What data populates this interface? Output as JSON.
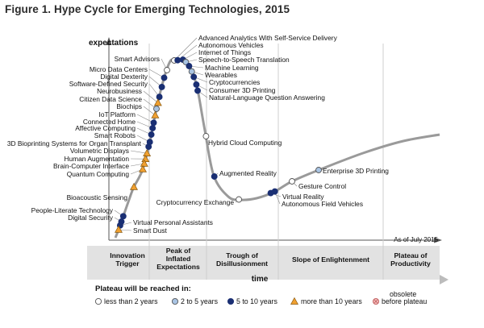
{
  "figure_title": "Figure 1. Hype Cycle for Emerging Technologies, 2015",
  "colors": {
    "less_than_2": "#ffffff",
    "two_to_5": "#a9c4e3",
    "five_to_10": "#1a2f73",
    "more_than_10": "#f0a030",
    "obsolete": "#f2b6b6",
    "curve": "#9a9a9a"
  },
  "chart_data": {
    "type": "scatter",
    "title": "Hype Cycle for Emerging Technologies, 2015",
    "ylabel": "expectations",
    "xlabel": "time",
    "as_of": "As of July 2015",
    "phases": [
      {
        "line1": "Innovation",
        "line2": "Trigger",
        "line3": ""
      },
      {
        "line1": "Peak of",
        "line2": "Inflated",
        "line3": "Expectations"
      },
      {
        "line1": "Trough of",
        "line2": "Disillusionment",
        "line3": ""
      },
      {
        "line1": "Slope of Enlightenment",
        "line2": "",
        "line3": ""
      },
      {
        "line1": "Plateau of",
        "line2": "Productivity",
        "line3": ""
      }
    ],
    "legend": {
      "title": "Plateau will be reached in:",
      "items": [
        {
          "key": "lt2",
          "label": "less than 2 years",
          "shape": "circle",
          "color": "#ffffff"
        },
        {
          "key": "2to5",
          "label": "2 to 5 years",
          "shape": "circle",
          "color": "#a9c4e3"
        },
        {
          "key": "5to10",
          "label": "5 to 10 years",
          "shape": "circle",
          "color": "#1a2f73"
        },
        {
          "key": "gt10",
          "label": "more than 10 years",
          "shape": "triangle",
          "color": "#f0a030"
        },
        {
          "key": "obs",
          "label": "obsolete",
          "label2": "before plateau",
          "shape": "circle-x",
          "color": "#f2b6b6"
        }
      ]
    },
    "points": [
      {
        "name": "Advanced Analytics With Self-Service Delivery",
        "t": 0.3,
        "cat": "lt2",
        "side": "right"
      },
      {
        "name": "Autonomous Vehicles",
        "t": 0.307,
        "cat": "5to10",
        "side": "right"
      },
      {
        "name": "Internet of Things",
        "t": 0.318,
        "cat": "5to10",
        "side": "right"
      },
      {
        "name": "Speech-to-Speech Translation",
        "t": 0.326,
        "cat": "2to5",
        "side": "right"
      },
      {
        "name": "Machine Learning",
        "t": 0.336,
        "cat": "5to10",
        "side": "right"
      },
      {
        "name": "Wearables",
        "t": 0.345,
        "cat": "2to5",
        "side": "right"
      },
      {
        "name": "Cryptocurrencies",
        "t": 0.352,
        "cat": "5to10",
        "side": "right"
      },
      {
        "name": "Consumer 3D Printing",
        "t": 0.362,
        "cat": "5to10",
        "side": "right"
      },
      {
        "name": "Natural-Language Question Answering",
        "t": 0.37,
        "cat": "5to10",
        "side": "right"
      },
      {
        "name": "Smart Advisors",
        "t": 0.275,
        "cat": "lt2",
        "side": "left"
      },
      {
        "name": "Micro Data Centers",
        "t": 0.262,
        "cat": "5to10",
        "side": "left"
      },
      {
        "name": "Digital Dexterity",
        "t": 0.252,
        "cat": "5to10",
        "side": "left"
      },
      {
        "name": "Software-Defined Security",
        "t": 0.242,
        "cat": "5to10",
        "side": "left"
      },
      {
        "name": "Neurobusiness",
        "t": 0.236,
        "cat": "gt10",
        "side": "left"
      },
      {
        "name": "Citizen Data Science",
        "t": 0.23,
        "cat": "2to5",
        "side": "left"
      },
      {
        "name": "Biochips",
        "t": 0.224,
        "cat": "gt10",
        "side": "left"
      },
      {
        "name": "IoT Platform",
        "t": 0.217,
        "cat": "5to10",
        "side": "left"
      },
      {
        "name": "Connected Home",
        "t": 0.212,
        "cat": "5to10",
        "side": "left"
      },
      {
        "name": "Affective Computing",
        "t": 0.206,
        "cat": "5to10",
        "side": "left"
      },
      {
        "name": "Smart Robots",
        "t": 0.199,
        "cat": "5to10",
        "side": "left"
      },
      {
        "name": "3D Bioprinting Systems for Organ Transplant",
        "t": 0.194,
        "cat": "5to10",
        "side": "left"
      },
      {
        "name": "Volumetric Displays",
        "t": 0.187,
        "cat": "gt10",
        "side": "left"
      },
      {
        "name": "Human Augmentation",
        "t": 0.181,
        "cat": "gt10",
        "side": "left"
      },
      {
        "name": "Brain-Computer Interface",
        "t": 0.176,
        "cat": "gt10",
        "side": "left"
      },
      {
        "name": "Quantum Computing",
        "t": 0.17,
        "cat": "gt10",
        "side": "left"
      },
      {
        "name": "Bioacoustic Sensing",
        "t": 0.13,
        "cat": "gt10",
        "side": "left"
      },
      {
        "name": "People-Literate Technology",
        "t": 0.045,
        "cat": "5to10",
        "side": "left"
      },
      {
        "name": "Digital Security",
        "t": 0.035,
        "cat": "5to10",
        "side": "left"
      },
      {
        "name": "Virtual Personal Assistants",
        "t": 0.028,
        "cat": "5to10",
        "side": "right"
      },
      {
        "name": "Smart Dust",
        "t": 0.02,
        "cat": "gt10",
        "side": "right"
      },
      {
        "name": "Hybrid Cloud Computing",
        "t": 0.415,
        "cat": "lt2",
        "side": "right"
      },
      {
        "name": "Augmented Reality",
        "t": 0.452,
        "cat": "5to10",
        "side": "right"
      },
      {
        "name": "Cryptocurrency Exchange",
        "t": 0.535,
        "cat": "lt2",
        "side": "left"
      },
      {
        "name": "Virtual Reality",
        "t": 0.62,
        "cat": "5to10",
        "side": "right"
      },
      {
        "name": "Autonomous Field Vehicles",
        "t": 0.632,
        "cat": "5to10",
        "side": "right"
      },
      {
        "name": "Gesture Control",
        "t": 0.69,
        "cat": "lt2",
        "side": "right"
      },
      {
        "name": "Enterprise 3D Printing",
        "t": 0.76,
        "cat": "2to5",
        "side": "right"
      }
    ]
  }
}
